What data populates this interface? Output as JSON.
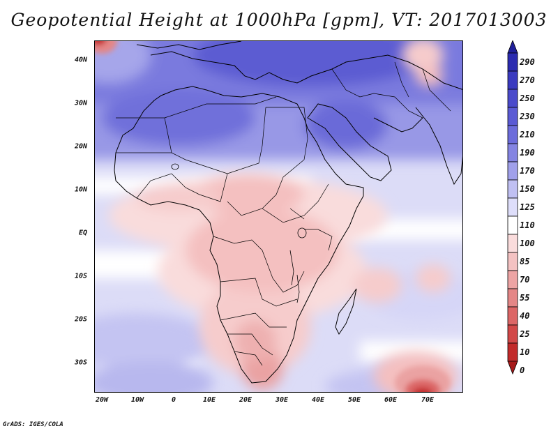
{
  "title": "Geopotential Height at 1000hPa [gpm], VT: 2017013003",
  "footer": "GrADS: IGES/COLA",
  "map": {
    "region": "Africa and Middle East",
    "variable": "Geopotential Height at 1000hPa",
    "units": "gpm",
    "valid_time": "2017013003",
    "lat_ticks": [
      "40N",
      "30N",
      "20N",
      "10N",
      "EQ",
      "10S",
      "20S",
      "30S"
    ],
    "lon_ticks": [
      "20W",
      "10W",
      "0",
      "10E",
      "20E",
      "30E",
      "40E",
      "50E",
      "60E",
      "70E"
    ]
  },
  "colorbar": {
    "levels": [
      "290",
      "270",
      "250",
      "230",
      "210",
      "190",
      "170",
      "150",
      "125",
      "110",
      "100",
      "85",
      "70",
      "55",
      "40",
      "25",
      "10",
      "0"
    ],
    "colors": [
      "#20209a",
      "#2b2bb0",
      "#3a3ac0",
      "#4a4acb",
      "#5a5ad4",
      "#6c6cdb",
      "#8484e2",
      "#a0a0ea",
      "#c0c0f2",
      "#dedefa",
      "#ffffff",
      "#fadcdc",
      "#f4c2c2",
      "#eda4a4",
      "#e48686",
      "#dc6666",
      "#d24848",
      "#c22a2a",
      "#a51818"
    ]
  }
}
